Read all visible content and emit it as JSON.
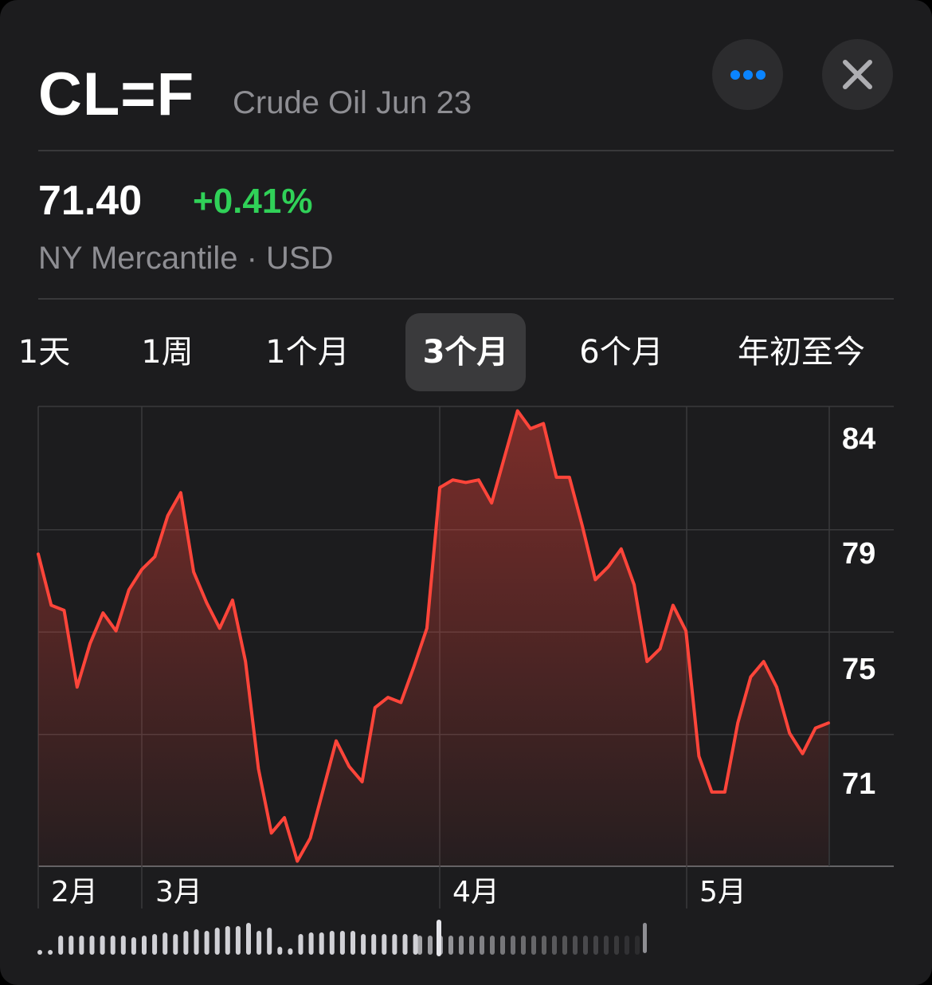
{
  "header": {
    "symbol": "CL=F",
    "name": "Crude Oil Jun 23",
    "more_icon": "ellipsis-icon",
    "close_icon": "close-icon"
  },
  "quote": {
    "price": "71.40",
    "change": "+0.41%",
    "exchange": "NY Mercantile · USD"
  },
  "range_tabs": [
    {
      "label": "1天",
      "selected": false
    },
    {
      "label": "1周",
      "selected": false
    },
    {
      "label": "1个月",
      "selected": false
    },
    {
      "label": "3个月",
      "selected": true
    },
    {
      "label": "6个月",
      "selected": false
    },
    {
      "label": "年初至今",
      "selected": false
    }
  ],
  "colors": {
    "background": "#1c1c1e",
    "line": "#ff453a",
    "positive": "#30d158",
    "secondary_text": "#8e8e93",
    "accent": "#0a84ff"
  },
  "chart_data": {
    "type": "area",
    "x_ticks": [
      "2月",
      "3月",
      "4月",
      "5月"
    ],
    "y_ticks": [
      84,
      79,
      75,
      71
    ],
    "ylim": [
      67,
      84.97
    ],
    "grid": true,
    "values": [
      79.2,
      77.2,
      77.0,
      74.0,
      75.7,
      76.9,
      76.2,
      77.8,
      78.6,
      79.1,
      80.7,
      81.6,
      78.5,
      77.3,
      76.3,
      77.4,
      75.0,
      70.8,
      68.3,
      68.9,
      67.2,
      68.1,
      70.0,
      71.9,
      70.9,
      70.3,
      73.2,
      73.6,
      73.4,
      74.8,
      76.3,
      81.8,
      82.1,
      82.0,
      82.1,
      81.2,
      83.0,
      84.8,
      84.1,
      84.3,
      82.2,
      82.2,
      80.3,
      78.2,
      78.7,
      79.4,
      78.0,
      75.0,
      75.5,
      77.2,
      76.2,
      71.3,
      69.9,
      69.9,
      72.6,
      74.4,
      75.0,
      74.0,
      72.2,
      71.4,
      72.4,
      72.6
    ]
  }
}
